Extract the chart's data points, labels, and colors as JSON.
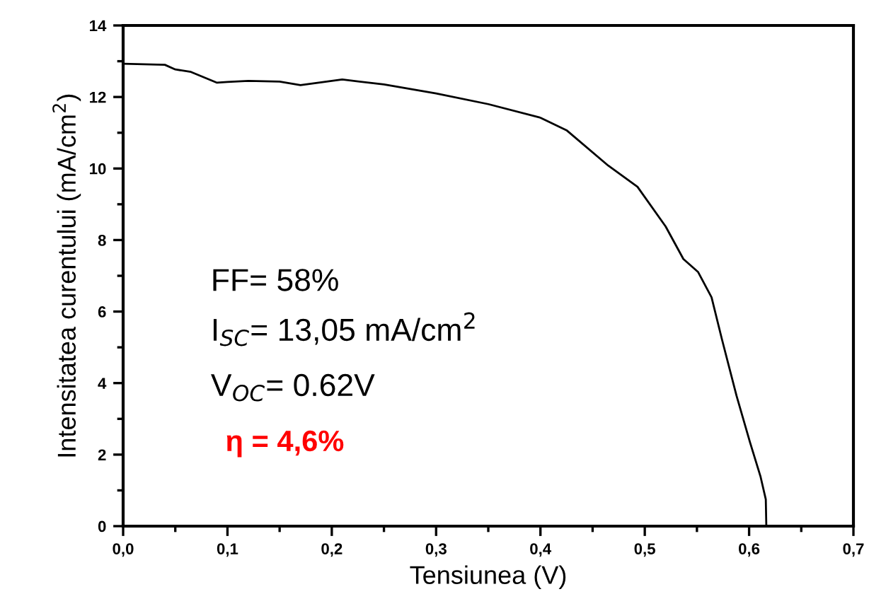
{
  "chart_data": {
    "type": "line",
    "xlabel": "Tensiunea (V)",
    "ylabel": "Intensitatea curentului (mA/cm$^{2}$)",
    "x": [
      0,
      0.04,
      0.05,
      0.065,
      0.09,
      0.1,
      0.12,
      0.15,
      0.17,
      0.21,
      0.25,
      0.3,
      0.35,
      0.4,
      0.425,
      0.465,
      0.493,
      0.52,
      0.537,
      0.551,
      0.564,
      0.574,
      0.588,
      0.601,
      0.611,
      0.616,
      0.6165
    ],
    "series": [
      {
        "color": "#000000",
        "values": [
          12.93,
          12.9,
          12.77,
          12.7,
          12.4,
          12.42,
          12.45,
          12.43,
          12.33,
          12.49,
          12.35,
          12.1,
          11.8,
          11.42,
          11.07,
          10.08,
          9.49,
          8.38,
          7.47,
          7.11,
          6.4,
          5.22,
          3.64,
          2.33,
          1.38,
          0.75,
          0
        ]
      }
    ],
    "xlim": [
      0,
      0.7
    ],
    "ylim": [
      0,
      14
    ],
    "xticks": [
      {
        "value": 0,
        "label": "0,0"
      },
      {
        "value": 0.1,
        "label": "0,1"
      },
      {
        "value": 0.2,
        "label": "0,2"
      },
      {
        "value": 0.3,
        "label": "0,3"
      },
      {
        "value": 0.4,
        "label": "0,4"
      },
      {
        "value": 0.5,
        "label": "0,5"
      },
      {
        "value": 0.6,
        "label": "0,6"
      },
      {
        "value": 0.7,
        "label": "0,7"
      }
    ],
    "yticks": [
      0,
      2,
      4,
      6,
      8,
      10,
      12,
      14
    ],
    "grid": false,
    "legend": false,
    "marker": "none",
    "line_style": "solid",
    "annotations": [
      "FF= 58%",
      "I$_{SC}$= 13,05 mA/cm$^{2}$",
      "V$_{OC}$= 0.62V",
      "η = 4,6%"
    ]
  }
}
